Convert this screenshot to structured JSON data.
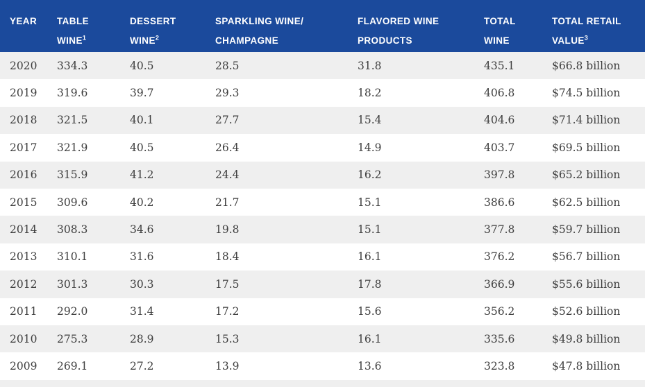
{
  "colors": {
    "header_bg": "#1b4a9c",
    "header_text": "#ffffff",
    "row_alt_bg": "#efefef",
    "row_bg": "#ffffff",
    "body_text": "#3d3d3d"
  },
  "table": {
    "columns": [
      {
        "line1": "YEAR",
        "line2": "",
        "sup": ""
      },
      {
        "line1": "TABLE",
        "line2": "WINE",
        "sup": "1"
      },
      {
        "line1": "DESSERT",
        "line2": "WINE",
        "sup": "2"
      },
      {
        "line1": "SPARKLING WINE/",
        "line2": "CHAMPAGNE",
        "sup": ""
      },
      {
        "line1": "FLAVORED WINE",
        "line2": "PRODUCTS",
        "sup": ""
      },
      {
        "line1": "TOTAL",
        "line2": "WINE",
        "sup": ""
      },
      {
        "line1": "TOTAL RETAIL",
        "line2": "VALUE",
        "sup": "3"
      }
    ],
    "rows": [
      [
        "2020",
        "334.3",
        "40.5",
        "28.5",
        "31.8",
        "435.1",
        "$66.8 billion"
      ],
      [
        "2019",
        "319.6",
        "39.7",
        "29.3",
        "18.2",
        "406.8",
        "$74.5 billion"
      ],
      [
        "2018",
        "321.5",
        "40.1",
        "27.7",
        "15.4",
        "404.6",
        "$71.4 billion"
      ],
      [
        "2017",
        "321.9",
        "40.5",
        "26.4",
        "14.9",
        "403.7",
        "$69.5 billion"
      ],
      [
        "2016",
        "315.9",
        "41.2",
        "24.4",
        "16.2",
        "397.8",
        "$65.2 billion"
      ],
      [
        "2015",
        "309.6",
        "40.2",
        "21.7",
        "15.1",
        "386.6",
        "$62.5 billion"
      ],
      [
        "2014",
        "308.3",
        "34.6",
        "19.8",
        "15.1",
        "377.8",
        "$59.7 billion"
      ],
      [
        "2013",
        "310.1",
        "31.6",
        "18.4",
        "16.1",
        "376.2",
        "$56.7 billion"
      ],
      [
        "2012",
        "301.3",
        "30.3",
        "17.5",
        "17.8",
        "366.9",
        "$55.6 billion"
      ],
      [
        "2011",
        "292.0",
        "31.4",
        "17.2",
        "15.6",
        "356.2",
        "$52.6 billion"
      ],
      [
        "2010",
        "275.3",
        "28.9",
        "15.3",
        "16.1",
        "335.6",
        "$49.8 billion"
      ],
      [
        "2009",
        "269.1",
        "27.2",
        "13.9",
        "13.6",
        "323.8",
        "$47.8 billion"
      ]
    ]
  },
  "chart_data": {
    "type": "table",
    "columns": [
      "YEAR",
      "TABLE WINE¹",
      "DESSERT WINE²",
      "SPARKLING WINE/CHAMPAGNE",
      "FLAVORED WINE PRODUCTS",
      "TOTAL WINE",
      "TOTAL RETAIL VALUE³"
    ],
    "rows": [
      [
        "2020",
        334.3,
        40.5,
        28.5,
        31.8,
        435.1,
        "$66.8 billion"
      ],
      [
        "2019",
        319.6,
        39.7,
        29.3,
        18.2,
        406.8,
        "$74.5 billion"
      ],
      [
        "2018",
        321.5,
        40.1,
        27.7,
        15.4,
        404.6,
        "$71.4 billion"
      ],
      [
        "2017",
        321.9,
        40.5,
        26.4,
        14.9,
        403.7,
        "$69.5 billion"
      ],
      [
        "2016",
        315.9,
        41.2,
        24.4,
        16.2,
        397.8,
        "$65.2 billion"
      ],
      [
        "2015",
        309.6,
        40.2,
        21.7,
        15.1,
        386.6,
        "$62.5 billion"
      ],
      [
        "2014",
        308.3,
        34.6,
        19.8,
        15.1,
        377.8,
        "$59.7 billion"
      ],
      [
        "2013",
        310.1,
        31.6,
        18.4,
        16.1,
        376.2,
        "$56.7 billion"
      ],
      [
        "2012",
        301.3,
        30.3,
        17.5,
        17.8,
        366.9,
        "$55.6 billion"
      ],
      [
        "2011",
        292.0,
        31.4,
        17.2,
        15.6,
        356.2,
        "$52.6 billion"
      ],
      [
        "2010",
        275.3,
        28.9,
        15.3,
        16.1,
        335.6,
        "$49.8 billion"
      ],
      [
        "2009",
        269.1,
        27.2,
        13.9,
        13.6,
        323.8,
        "$47.8 billion"
      ]
    ]
  }
}
